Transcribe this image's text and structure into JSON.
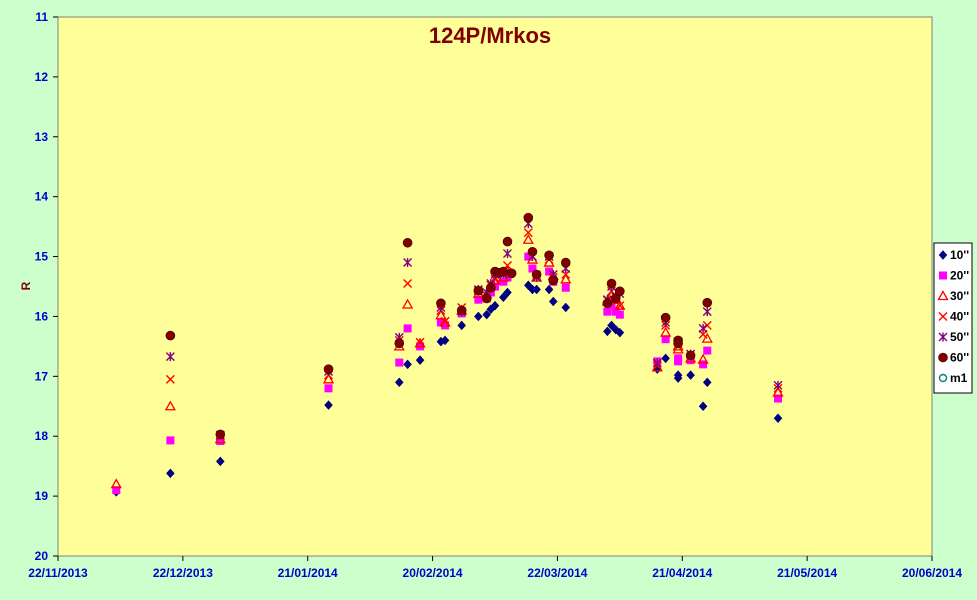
{
  "chart_data": {
    "type": "scatter",
    "title": "124P/Mrkos",
    "xlabel": "",
    "ylabel": "R",
    "ylim": [
      11,
      20
    ],
    "y_inverted": true,
    "y_ticks": [
      "11",
      "12",
      "13",
      "14",
      "15",
      "16",
      "17",
      "18",
      "19",
      "20"
    ],
    "x_type": "date",
    "xlim": [
      "2013-11-22",
      "2014-06-20"
    ],
    "x_ticks": [
      {
        "date": "2013-11-22",
        "label": "22/11/2013"
      },
      {
        "date": "2013-12-22",
        "label": "22/12/2013"
      },
      {
        "date": "2014-01-21",
        "label": "21/01/2014"
      },
      {
        "date": "2014-02-20",
        "label": "20/02/2014"
      },
      {
        "date": "2014-03-22",
        "label": "22/03/2014"
      },
      {
        "date": "2014-04-21",
        "label": "21/04/2014"
      },
      {
        "date": "2014-05-21",
        "label": "21/05/2014"
      },
      {
        "date": "2014-06-20",
        "label": "20/06/2014"
      }
    ],
    "plot_background": "#ffff99",
    "grid": false,
    "legend_position": "right",
    "series": [
      {
        "name": "10''",
        "marker": "diamond",
        "color": "#000080",
        "points": [
          [
            "2013-12-06",
            18.93
          ],
          [
            "2013-12-19",
            18.62
          ],
          [
            "2013-12-31",
            18.42
          ],
          [
            "2014-01-26",
            17.48
          ],
          [
            "2014-02-12",
            17.1
          ],
          [
            "2014-02-14",
            16.8
          ],
          [
            "2014-02-17",
            16.73
          ],
          [
            "2014-02-22",
            16.42
          ],
          [
            "2014-02-23",
            16.4
          ],
          [
            "2014-02-27",
            16.15
          ],
          [
            "2014-03-03",
            16.0
          ],
          [
            "2014-03-05",
            15.97
          ],
          [
            "2014-03-06",
            15.88
          ],
          [
            "2014-03-07",
            15.82
          ],
          [
            "2014-03-09",
            15.68
          ],
          [
            "2014-03-10",
            15.6
          ],
          [
            "2014-03-15",
            15.48
          ],
          [
            "2014-03-16",
            15.55
          ],
          [
            "2014-03-17",
            15.55
          ],
          [
            "2014-03-20",
            15.55
          ],
          [
            "2014-03-21",
            15.75
          ],
          [
            "2014-03-24",
            15.85
          ],
          [
            "2014-04-03",
            16.25
          ],
          [
            "2014-04-04",
            16.15
          ],
          [
            "2014-04-05",
            16.22
          ],
          [
            "2014-04-06",
            16.27
          ],
          [
            "2014-04-15",
            16.88
          ],
          [
            "2014-04-17",
            16.7
          ],
          [
            "2014-04-20",
            16.98
          ],
          [
            "2014-04-20",
            17.03
          ],
          [
            "2014-04-23",
            16.98
          ],
          [
            "2014-04-26",
            17.5
          ],
          [
            "2014-04-27",
            17.1
          ],
          [
            "2014-05-14",
            17.7
          ]
        ]
      },
      {
        "name": "20''",
        "marker": "square",
        "color": "#ff00ff",
        "points": [
          [
            "2013-12-06",
            18.9
          ],
          [
            "2013-12-19",
            18.07
          ],
          [
            "2013-12-31",
            18.08
          ],
          [
            "2014-01-26",
            17.2
          ],
          [
            "2014-02-12",
            16.77
          ],
          [
            "2014-02-14",
            16.2
          ],
          [
            "2014-02-17",
            16.5
          ],
          [
            "2014-02-22",
            16.1
          ],
          [
            "2014-02-23",
            16.15
          ],
          [
            "2014-02-27",
            15.95
          ],
          [
            "2014-03-03",
            15.72
          ],
          [
            "2014-03-05",
            15.7
          ],
          [
            "2014-03-06",
            15.6
          ],
          [
            "2014-03-07",
            15.5
          ],
          [
            "2014-03-09",
            15.42
          ],
          [
            "2014-03-10",
            15.35
          ],
          [
            "2014-03-15",
            15.0
          ],
          [
            "2014-03-16",
            15.2
          ],
          [
            "2014-03-17",
            15.3
          ],
          [
            "2014-03-20",
            15.25
          ],
          [
            "2014-03-21",
            15.42
          ],
          [
            "2014-03-24",
            15.52
          ],
          [
            "2014-04-03",
            15.92
          ],
          [
            "2014-04-04",
            15.82
          ],
          [
            "2014-04-05",
            15.92
          ],
          [
            "2014-04-06",
            15.97
          ],
          [
            "2014-04-15",
            16.75
          ],
          [
            "2014-04-17",
            16.38
          ],
          [
            "2014-04-20",
            16.7
          ],
          [
            "2014-04-20",
            16.75
          ],
          [
            "2014-04-23",
            16.73
          ],
          [
            "2014-04-26",
            16.8
          ],
          [
            "2014-04-27",
            16.57
          ],
          [
            "2014-05-14",
            17.37
          ]
        ]
      },
      {
        "name": "30''",
        "marker": "triangle",
        "color": "#ff0000",
        "points": [
          [
            "2013-12-06",
            18.8
          ],
          [
            "2013-12-19",
            17.5
          ],
          [
            "2013-12-31",
            18.05
          ],
          [
            "2014-01-26",
            17.05
          ],
          [
            "2014-02-12",
            16.5
          ],
          [
            "2014-02-14",
            15.8
          ],
          [
            "2014-02-17",
            16.45
          ],
          [
            "2014-02-22",
            15.98
          ],
          [
            "2014-02-23",
            16.1
          ],
          [
            "2014-02-27",
            15.9
          ],
          [
            "2014-03-03",
            15.62
          ],
          [
            "2014-03-05",
            15.63
          ],
          [
            "2014-03-06",
            15.5
          ],
          [
            "2014-03-07",
            15.4
          ],
          [
            "2014-03-09",
            15.35
          ],
          [
            "2014-03-10",
            15.25
          ],
          [
            "2014-03-15",
            14.72
          ],
          [
            "2014-03-16",
            15.05
          ],
          [
            "2014-03-17",
            15.35
          ],
          [
            "2014-03-20",
            15.1
          ],
          [
            "2014-03-21",
            15.32
          ],
          [
            "2014-03-24",
            15.38
          ],
          [
            "2014-04-03",
            15.75
          ],
          [
            "2014-04-04",
            15.65
          ],
          [
            "2014-04-05",
            15.72
          ],
          [
            "2014-04-06",
            15.82
          ],
          [
            "2014-04-15",
            16.85
          ],
          [
            "2014-04-17",
            16.27
          ],
          [
            "2014-04-20",
            16.55
          ],
          [
            "2014-04-20",
            16.5
          ],
          [
            "2014-04-23",
            16.7
          ],
          [
            "2014-04-26",
            16.72
          ],
          [
            "2014-04-27",
            16.37
          ],
          [
            "2014-05-14",
            17.27
          ]
        ]
      },
      {
        "name": "40''",
        "marker": "x",
        "color": "#ff0000",
        "points": [
          [
            "2013-12-19",
            17.05
          ],
          [
            "2013-12-31",
            18.0
          ],
          [
            "2014-01-26",
            16.98
          ],
          [
            "2014-02-12",
            16.4
          ],
          [
            "2014-02-14",
            15.45
          ],
          [
            "2014-02-17",
            16.43
          ],
          [
            "2014-02-22",
            15.9
          ],
          [
            "2014-02-23",
            16.08
          ],
          [
            "2014-02-27",
            15.85
          ],
          [
            "2014-03-03",
            15.57
          ],
          [
            "2014-03-05",
            15.65
          ],
          [
            "2014-03-06",
            15.48
          ],
          [
            "2014-03-07",
            15.38
          ],
          [
            "2014-03-09",
            15.3
          ],
          [
            "2014-03-10",
            15.15
          ],
          [
            "2014-03-15",
            14.6
          ],
          [
            "2014-03-16",
            15.0
          ],
          [
            "2014-03-17",
            15.33
          ],
          [
            "2014-03-20",
            15.05
          ],
          [
            "2014-03-21",
            15.35
          ],
          [
            "2014-03-24",
            15.3
          ],
          [
            "2014-04-03",
            15.73
          ],
          [
            "2014-04-04",
            15.58
          ],
          [
            "2014-04-05",
            15.68
          ],
          [
            "2014-04-06",
            15.82
          ],
          [
            "2014-04-15",
            16.82
          ],
          [
            "2014-04-17",
            16.15
          ],
          [
            "2014-04-20",
            16.47
          ],
          [
            "2014-04-20",
            16.42
          ],
          [
            "2014-04-23",
            16.63
          ],
          [
            "2014-04-26",
            16.3
          ],
          [
            "2014-04-27",
            16.15
          ],
          [
            "2014-05-14",
            17.2
          ]
        ]
      },
      {
        "name": "50''",
        "marker": "star",
        "color": "#800080",
        "points": [
          [
            "2013-12-19",
            16.67
          ],
          [
            "2013-12-31",
            17.98
          ],
          [
            "2014-01-26",
            16.92
          ],
          [
            "2014-02-12",
            16.35
          ],
          [
            "2014-02-14",
            15.1
          ],
          [
            "2014-02-22",
            15.85
          ],
          [
            "2014-02-27",
            15.92
          ],
          [
            "2014-03-03",
            15.55
          ],
          [
            "2014-03-05",
            15.6
          ],
          [
            "2014-03-06",
            15.45
          ],
          [
            "2014-03-07",
            15.3
          ],
          [
            "2014-03-09",
            15.28
          ],
          [
            "2014-03-10",
            14.95
          ],
          [
            "2014-03-15",
            14.45
          ],
          [
            "2014-03-16",
            15.0
          ],
          [
            "2014-03-17",
            15.35
          ],
          [
            "2014-03-20",
            15.0
          ],
          [
            "2014-03-21",
            15.3
          ],
          [
            "2014-03-24",
            15.2
          ],
          [
            "2014-04-03",
            15.72
          ],
          [
            "2014-04-04",
            15.5
          ],
          [
            "2014-04-05",
            15.65
          ],
          [
            "2014-04-06",
            15.62
          ],
          [
            "2014-04-15",
            16.78
          ],
          [
            "2014-04-17",
            16.1
          ],
          [
            "2014-04-20",
            16.42
          ],
          [
            "2014-04-23",
            16.63
          ],
          [
            "2014-04-26",
            16.2
          ],
          [
            "2014-04-27",
            15.92
          ],
          [
            "2014-05-14",
            17.15
          ]
        ]
      },
      {
        "name": "60''",
        "marker": "circle",
        "color": "#800000",
        "points": [
          [
            "2013-12-19",
            16.32
          ],
          [
            "2013-12-31",
            17.97
          ],
          [
            "2014-01-26",
            16.88
          ],
          [
            "2014-02-12",
            16.45
          ],
          [
            "2014-02-14",
            14.77
          ],
          [
            "2014-02-22",
            15.78
          ],
          [
            "2014-02-27",
            15.9
          ],
          [
            "2014-03-03",
            15.57
          ],
          [
            "2014-03-05",
            15.7
          ],
          [
            "2014-03-06",
            15.52
          ],
          [
            "2014-03-07",
            15.25
          ],
          [
            "2014-03-08",
            15.27
          ],
          [
            "2014-03-09",
            15.25
          ],
          [
            "2014-03-10",
            14.75
          ],
          [
            "2014-03-11",
            15.28
          ],
          [
            "2014-03-15",
            14.35
          ],
          [
            "2014-03-16",
            14.92
          ],
          [
            "2014-03-17",
            15.3
          ],
          [
            "2014-03-20",
            14.98
          ],
          [
            "2014-03-21",
            15.4
          ],
          [
            "2014-03-24",
            15.1
          ],
          [
            "2014-04-03",
            15.78
          ],
          [
            "2014-04-04",
            15.45
          ],
          [
            "2014-04-05",
            15.7
          ],
          [
            "2014-04-06",
            15.58
          ],
          [
            "2014-04-17",
            16.02
          ],
          [
            "2014-04-20",
            16.4
          ],
          [
            "2014-04-20",
            16.45
          ],
          [
            "2014-04-23",
            16.65
          ],
          [
            "2014-04-27",
            15.77
          ]
        ]
      },
      {
        "name": "m1",
        "marker": "open-circle",
        "color": "#008080",
        "points": []
      }
    ]
  }
}
